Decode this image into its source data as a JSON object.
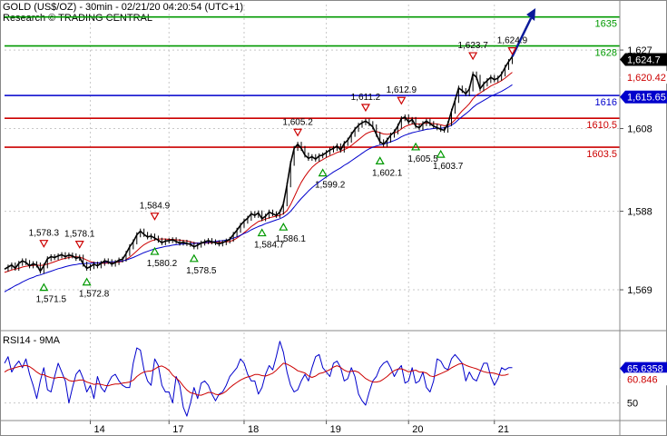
{
  "header": {
    "title": "GOLD (US$/OZ) - 30min - 02/21/20 04:20:54 (UTC+1)",
    "subtitle": "Research © TRADING CENTRAL"
  },
  "colors": {
    "resistance": "#009900",
    "pivot": "#0000cc",
    "support": "#cc0000",
    "price": "#000000",
    "ma_fast": "#cc0000",
    "ma_slow": "#0000cc",
    "arrow": "#0a1a9a",
    "current_tag": "#000000",
    "grid": "#c8c8c8"
  },
  "chart_data": [
    {
      "type": "line",
      "title": "",
      "ylim": [
        1560,
        1638
      ],
      "y_ticks": [
        "1,627",
        "1,608",
        "1,588",
        "1,569"
      ],
      "y_tick_values": [
        1627,
        1608,
        1588,
        1569
      ],
      "x_ticks": [
        "14",
        "17",
        "18",
        "19",
        "20",
        "21"
      ],
      "x_tick_positions": [
        24,
        46,
        67,
        90,
        113,
        137
      ],
      "grid": true,
      "levels": [
        {
          "label": "1635",
          "value": 1635,
          "kind": "resistance"
        },
        {
          "label": "1628",
          "value": 1628,
          "kind": "resistance"
        },
        {
          "label": "1616",
          "value": 1616,
          "kind": "pivot"
        },
        {
          "label": "1610.5",
          "value": 1610.5,
          "kind": "support"
        },
        {
          "label": "1603.5",
          "value": 1603.5,
          "kind": "support"
        }
      ],
      "current_price": {
        "label": "1,624.7",
        "value": 1624.7
      },
      "price_tags": [
        {
          "label": "1,620.42",
          "value": 1620.4,
          "kind": "support"
        },
        {
          "label": "1,615.65",
          "value": 1615.65,
          "kind": "pivot"
        }
      ],
      "annotations": [
        {
          "label": "1,571.5",
          "bar": 11,
          "value": 1571.5,
          "kind": "low"
        },
        {
          "label": "1,578.3",
          "bar": 11,
          "value": 1578.3,
          "kind": "high"
        },
        {
          "label": "1,578.1",
          "bar": 21,
          "value": 1578.1,
          "kind": "high"
        },
        {
          "label": "1,572.8",
          "bar": 23,
          "value": 1572.8,
          "kind": "low"
        },
        {
          "label": "1,584.9",
          "bar": 42,
          "value": 1584.9,
          "kind": "high"
        },
        {
          "label": "1,580.2",
          "bar": 42,
          "value": 1580.2,
          "kind": "low"
        },
        {
          "label": "1,578.5",
          "bar": 53,
          "value": 1578.5,
          "kind": "low"
        },
        {
          "label": "1,584.7",
          "bar": 72,
          "value": 1584.7,
          "kind": "low"
        },
        {
          "label": "1,586.1",
          "bar": 78,
          "value": 1586.1,
          "kind": "low"
        },
        {
          "label": "1,605.2",
          "bar": 82,
          "value": 1605.2,
          "kind": "high"
        },
        {
          "label": "1,599.2",
          "bar": 89,
          "value": 1599.2,
          "kind": "low"
        },
        {
          "label": "1,611.2",
          "bar": 101,
          "value": 1611.2,
          "kind": "high"
        },
        {
          "label": "1,602.1",
          "bar": 105,
          "value": 1602.1,
          "kind": "low"
        },
        {
          "label": "1,612.9",
          "bar": 111,
          "value": 1612.9,
          "kind": "high"
        },
        {
          "label": "1,605.5",
          "bar": 115,
          "value": 1605.5,
          "kind": "low"
        },
        {
          "label": "1,603.7",
          "bar": 122,
          "value": 1603.7,
          "kind": "low"
        },
        {
          "label": "1,623.7",
          "bar": 131,
          "value": 1623.7,
          "kind": "high"
        },
        {
          "label": "1,624.9",
          "bar": 142,
          "value": 1624.9,
          "kind": "high"
        }
      ],
      "series": [
        {
          "kind": "price",
          "values": [
            1574,
            1574.5,
            1575,
            1574.2,
            1575.4,
            1576,
            1575.6,
            1574.8,
            1575.3,
            1575,
            1573.5,
            1574.8,
            1576.5,
            1577,
            1576.8,
            1577.2,
            1577.5,
            1577,
            1577.4,
            1577.2,
            1576.6,
            1576.9,
            1575.2,
            1574.2,
            1574.6,
            1575.2,
            1574.8,
            1575.4,
            1576,
            1575.8,
            1575.2,
            1575.6,
            1576.2,
            1576.4,
            1577.8,
            1579.4,
            1580.6,
            1582.3,
            1583.2,
            1582.4,
            1581.8,
            1582,
            1581.5,
            1581,
            1580.4,
            1580.8,
            1580.9,
            1581.1,
            1580.7,
            1580.3,
            1580.5,
            1580.2,
            1580,
            1579.4,
            1579.8,
            1580.3,
            1580.6,
            1580.9,
            1580.6,
            1580.4,
            1580.1,
            1580.4,
            1580.8,
            1581.2,
            1582.4,
            1583.4,
            1584.6,
            1585.6,
            1586.3,
            1587.4,
            1587,
            1587.6,
            1586.2,
            1586.8,
            1587.8,
            1587.4,
            1587,
            1587.8,
            1589.8,
            1594.4,
            1599.6,
            1603.2,
            1604.2,
            1603.2,
            1601.6,
            1600.8,
            1601.2,
            1600.6,
            1601.4,
            1601.6,
            1602.2,
            1602.8,
            1603.2,
            1603.8,
            1602.8,
            1604.4,
            1605.2,
            1606.6,
            1607.8,
            1608.8,
            1609.4,
            1609.8,
            1609.2,
            1608.4,
            1606.6,
            1604.8,
            1604.2,
            1605.2,
            1606.4,
            1607.2,
            1608.6,
            1610.4,
            1610.8,
            1609.6,
            1610.2,
            1608.6,
            1608.2,
            1609.2,
            1609.8,
            1609.2,
            1608.6,
            1608.2,
            1607.8,
            1607.6,
            1609.2,
            1612.2,
            1614.8,
            1617.8,
            1617.2,
            1616.4,
            1617.6,
            1621.2,
            1620.4,
            1617.6,
            1618.8,
            1619.6,
            1620.4,
            1619.8,
            1620.2,
            1621.2,
            1622.8,
            1624.2,
            1625.4
          ]
        },
        {
          "kind": "ma_fast",
          "values": [
            1573.2,
            1573.5,
            1573.8,
            1574,
            1574.2,
            1574.5,
            1574.7,
            1574.8,
            1574.9,
            1575,
            1574.9,
            1575,
            1575.2,
            1575.5,
            1575.8,
            1576.1,
            1576.4,
            1576.6,
            1576.8,
            1577,
            1577,
            1576.9,
            1576.6,
            1576.2,
            1575.8,
            1575.6,
            1575.5,
            1575.4,
            1575.4,
            1575.5,
            1575.5,
            1575.6,
            1575.7,
            1575.9,
            1576.3,
            1576.9,
            1577.6,
            1578.4,
            1579.2,
            1579.9,
            1580.4,
            1580.8,
            1581.1,
            1581.3,
            1581.3,
            1581.3,
            1581.2,
            1581.2,
            1581.1,
            1581,
            1580.9,
            1580.8,
            1580.6,
            1580.4,
            1580.3,
            1580.3,
            1580.3,
            1580.4,
            1580.4,
            1580.5,
            1580.5,
            1580.5,
            1580.6,
            1580.7,
            1581,
            1581.5,
            1582.1,
            1582.8,
            1583.5,
            1584.3,
            1584.9,
            1585.5,
            1585.8,
            1586.1,
            1586.4,
            1586.6,
            1586.8,
            1587,
            1587.4,
            1588.2,
            1589.6,
            1591.4,
            1593.3,
            1595,
            1596.4,
            1597.6,
            1598.6,
            1599.4,
            1600,
            1600.5,
            1601,
            1601.4,
            1601.8,
            1602.2,
            1602.5,
            1602.9,
            1603.3,
            1603.9,
            1604.6,
            1605.3,
            1606,
            1606.7,
            1607.1,
            1607.4,
            1607.3,
            1607,
            1606.7,
            1606.6,
            1606.7,
            1606.9,
            1607.3,
            1607.9,
            1608.5,
            1608.8,
            1609.1,
            1609.1,
            1609.1,
            1609.2,
            1609.3,
            1609.3,
            1609.2,
            1609.1,
            1608.9,
            1608.7,
            1608.8,
            1609.3,
            1610.1,
            1611.3,
            1612.3,
            1613.1,
            1614,
            1615.2,
            1616.1,
            1616.6,
            1617.2,
            1617.7,
            1618.3,
            1618.7,
            1619.1,
            1619.6,
            1620.2,
            1620.9,
            1621.6
          ]
        },
        {
          "kind": "ma_slow",
          "values": [
            1568.5,
            1569,
            1569.5,
            1570,
            1570.4,
            1570.9,
            1571.3,
            1571.7,
            1572,
            1572.4,
            1572.6,
            1572.9,
            1573.2,
            1573.5,
            1573.8,
            1574.1,
            1574.3,
            1574.6,
            1574.8,
            1575,
            1575.1,
            1575.3,
            1575.3,
            1575.4,
            1575.4,
            1575.5,
            1575.5,
            1575.6,
            1575.6,
            1575.7,
            1575.8,
            1575.8,
            1575.9,
            1576,
            1576.2,
            1576.5,
            1576.8,
            1577.2,
            1577.6,
            1578,
            1578.3,
            1578.6,
            1578.9,
            1579.1,
            1579.3,
            1579.5,
            1579.6,
            1579.8,
            1579.9,
            1580,
            1580.1,
            1580.1,
            1580.2,
            1580.2,
            1580.3,
            1580.3,
            1580.4,
            1580.5,
            1580.6,
            1580.7,
            1580.8,
            1580.9,
            1581,
            1581.2,
            1581.5,
            1581.8,
            1582.2,
            1582.6,
            1583,
            1583.5,
            1583.9,
            1584.3,
            1584.6,
            1585,
            1585.3,
            1585.6,
            1585.9,
            1586.2,
            1586.6,
            1587.2,
            1588,
            1589,
            1590.1,
            1591.1,
            1592,
            1592.9,
            1593.7,
            1594.4,
            1595.1,
            1595.7,
            1596.3,
            1596.9,
            1597.5,
            1598,
            1598.5,
            1599.1,
            1599.6,
            1600.2,
            1600.8,
            1601.4,
            1602,
            1602.6,
            1603.1,
            1603.5,
            1603.8,
            1604,
            1604.2,
            1604.5,
            1604.8,
            1605.1,
            1605.5,
            1606,
            1606.4,
            1606.7,
            1607,
            1607.2,
            1607.4,
            1607.6,
            1607.8,
            1607.9,
            1608,
            1608.1,
            1608.1,
            1608.2,
            1608.4,
            1608.8,
            1609.4,
            1610.2,
            1610.9,
            1611.6,
            1612.3,
            1613.1,
            1613.8,
            1614.3,
            1614.8,
            1615.3,
            1615.8,
            1616.2,
            1616.6,
            1617,
            1617.5,
            1618,
            1618.6
          ]
        }
      ],
      "forecast": {
        "from_bar": 142,
        "from_value": 1625.4,
        "to_bar": 148,
        "to_value": 1635.8
      }
    },
    {
      "type": "line",
      "title": "RSI14 - 9MA",
      "ylim": [
        42,
        82
      ],
      "y_ticks": [
        "50"
      ],
      "y_tick_values": [
        50
      ],
      "current_values": [
        {
          "label": "65.6358",
          "value": 65.64,
          "kind": "rsi"
        },
        {
          "label": "60.846",
          "value": 60.85,
          "kind": "ma"
        }
      ],
      "series": [
        {
          "kind": "rsi",
          "values": [
            68,
            71,
            64,
            67,
            69,
            66,
            70,
            63,
            58,
            52,
            60,
            66,
            56,
            55,
            62,
            68,
            64,
            60,
            50,
            57,
            63,
            65,
            61,
            55,
            58,
            52,
            62,
            57,
            55,
            59,
            62,
            63,
            60,
            58,
            57,
            57,
            68,
            75,
            74,
            65,
            60,
            58,
            70,
            67,
            58,
            55,
            55,
            50,
            62,
            58,
            48,
            44,
            50,
            57,
            52,
            59,
            60,
            58,
            54,
            51,
            54,
            55,
            58,
            62,
            64,
            66,
            70,
            68,
            63,
            60,
            60,
            54,
            57,
            63,
            67,
            65,
            71,
            78,
            73,
            64,
            58,
            55,
            56,
            60,
            63,
            60,
            66,
            71,
            72,
            66,
            64,
            62,
            68,
            69,
            66,
            60,
            61,
            66,
            62,
            54,
            51,
            49,
            55,
            60,
            62,
            66,
            68,
            69,
            66,
            62,
            65,
            67,
            59,
            60,
            66,
            59,
            60,
            64,
            57,
            55,
            60,
            70,
            69,
            66,
            65,
            70,
            72,
            70,
            68,
            60,
            64,
            61,
            60,
            64,
            68,
            68,
            62,
            58,
            61,
            66,
            65,
            66,
            66
          ]
        },
        {
          "kind": "ma",
          "values": [
            64,
            65,
            65.5,
            66,
            66.5,
            66.8,
            67,
            66.5,
            65.4,
            64,
            63,
            62.8,
            62,
            61.5,
            61.2,
            61.6,
            61.6,
            61.3,
            60.2,
            59.8,
            60.1,
            60.4,
            60.4,
            59.5,
            59,
            58.4,
            58.7,
            58.4,
            58,
            57.8,
            58.3,
            58.6,
            58.6,
            59,
            59.2,
            59.5,
            60.3,
            62,
            63.2,
            64,
            64.4,
            64.5,
            65.4,
            66.4,
            66.8,
            66,
            64.8,
            62.6,
            61.3,
            59.8,
            57.7,
            55.9,
            54.6,
            54.3,
            53.6,
            53.5,
            54.1,
            54.8,
            54.7,
            53.9,
            53.7,
            54.3,
            55.3,
            56.9,
            58.2,
            59.3,
            60.4,
            61.2,
            61.8,
            62.2,
            62.9,
            62.9,
            62.4,
            62.2,
            62.8,
            63.5,
            64.8,
            66.5,
            68,
            67.6,
            66.8,
            65.8,
            64.6,
            64.1,
            63.6,
            62.3,
            61.6,
            62.2,
            63.3,
            63.7,
            64.4,
            65.1,
            66.3,
            66.9,
            66.1,
            64.9,
            64.2,
            64.4,
            64.5,
            63.9,
            62.5,
            61.1,
            60.2,
            59.5,
            59.5,
            59.8,
            60.8,
            62,
            63.5,
            64.7,
            65.4,
            65.5,
            64.9,
            64.1,
            64.5,
            64.9,
            64,
            64,
            63.6,
            62.3,
            61.9,
            62.6,
            63.3,
            64,
            64.8,
            65.9,
            66.8,
            67.6,
            67.9,
            67.1,
            66.5,
            66,
            65.5,
            64.8,
            64.2,
            63.8,
            63.7,
            63.5,
            63,
            62.5,
            62.6,
            63.1
          ]
        }
      ]
    }
  ]
}
